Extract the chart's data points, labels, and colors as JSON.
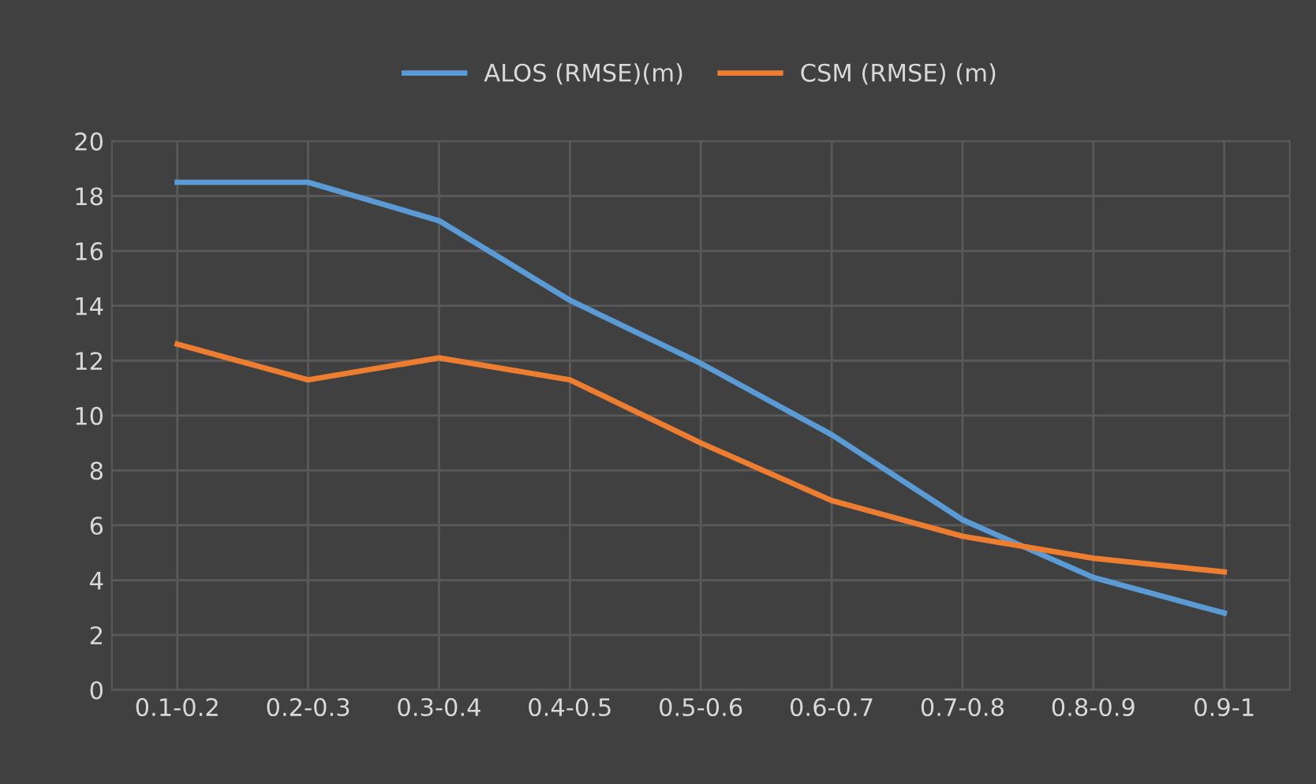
{
  "chart_data": {
    "type": "line",
    "categories": [
      "0.1-0.2",
      "0.2-0.3",
      "0.3-0.4",
      "0.4-0.5",
      "0.5-0.6",
      "0.6-0.7",
      "0.7-0.8",
      "0.8-0.9",
      "0.9-1"
    ],
    "series": [
      {
        "name": "ALOS (RMSE)(m)",
        "color": "#5b9bd5",
        "values": [
          18.5,
          18.5,
          17.1,
          14.2,
          11.9,
          9.3,
          6.2,
          4.1,
          2.8
        ]
      },
      {
        "name": "CSM (RMSE) (m)",
        "color": "#ed7d31",
        "values": [
          12.6,
          11.3,
          12.1,
          11.3,
          9.0,
          6.9,
          5.6,
          4.8,
          4.3
        ]
      }
    ],
    "ylim": [
      0,
      20
    ],
    "yticks": [
      0,
      2,
      4,
      6,
      8,
      10,
      12,
      14,
      16,
      18,
      20
    ],
    "grid": true,
    "legend": "top",
    "marker": "none",
    "line_style": "solid"
  }
}
